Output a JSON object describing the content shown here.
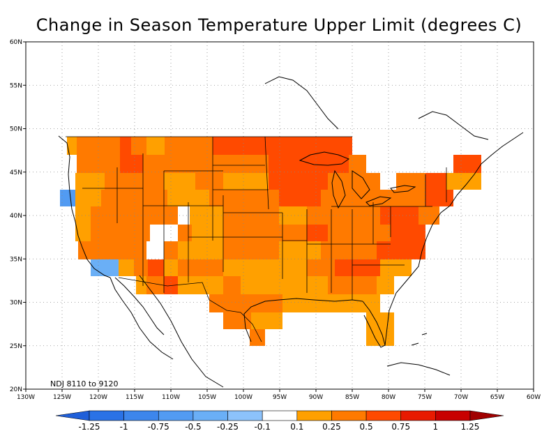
{
  "title": "Change in Season Temperature Upper Limit (degrees C)",
  "period_note": "NDJ 8110 to 9120",
  "map": {
    "lon_range": [
      -130,
      -60
    ],
    "lat_range": [
      20,
      60
    ],
    "lon_ticks": [
      "130W",
      "125W",
      "120W",
      "115W",
      "110W",
      "105W",
      "100W",
      "95W",
      "90W",
      "85W",
      "80W",
      "75W",
      "70W",
      "65W",
      "60W"
    ],
    "lat_ticks": [
      "20N",
      "25N",
      "30N",
      "35N",
      "40N",
      "45N",
      "50N",
      "55N",
      "60N"
    ],
    "grid": true
  },
  "colorbar": {
    "labels": [
      "-1.25",
      "-1",
      "-0.75",
      "-0.5",
      "-0.25",
      "-0.1",
      "0.1",
      "0.25",
      "0.5",
      "0.75",
      "1",
      "1.25"
    ],
    "colors": [
      "#1f5fd9",
      "#2a72e6",
      "#3d86ec",
      "#529bf2",
      "#6aaff6",
      "#8cc2fb",
      "#ffffff",
      "#ffa000",
      "#ff7a00",
      "#ff4a00",
      "#e81a00",
      "#c80000",
      "#a00000"
    ]
  }
}
